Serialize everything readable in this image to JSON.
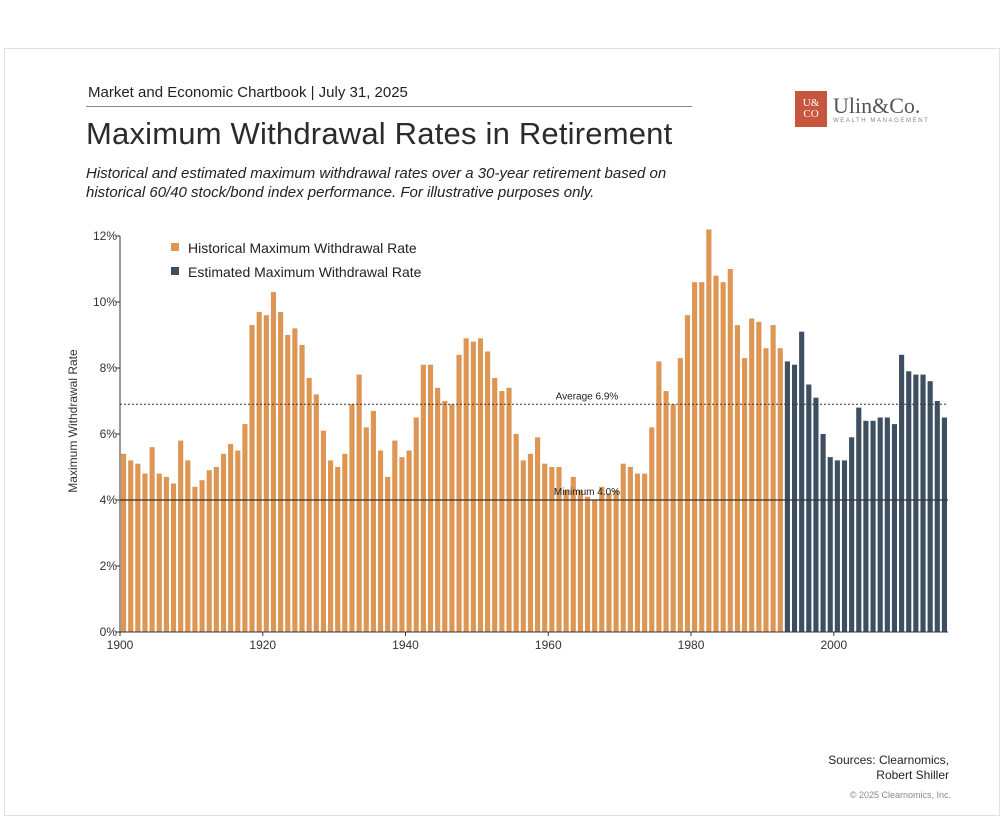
{
  "header": {
    "chartbook_line": "Market and Economic Chartbook | July 31, 2025",
    "title": "Maximum Withdrawal Rates in Retirement",
    "subtitle": "Historical and estimated maximum withdrawal rates over a 30-year retirement based on historical 60/40 stock/bond index performance. For illustrative purposes only."
  },
  "logo": {
    "mark_top": "U&",
    "mark_bottom": "CO",
    "name": "Ulin&Co.",
    "tagline": "WEALTH MANAGEMENT"
  },
  "footer": {
    "sources_line1": "Sources: Clearnomics,",
    "sources_line2": "Robert Shiller",
    "copyright": "© 2025 Clearnomics, Inc."
  },
  "colors": {
    "historical": "#dd9654",
    "estimated": "#3d4f61",
    "axis": "#333333"
  },
  "chart_data": {
    "type": "bar",
    "ylabel": "Maximum Withdrawal Rate",
    "xlabel": "",
    "ylim": [
      0,
      12
    ],
    "yticks": [
      "0%",
      "2%",
      "4%",
      "6%",
      "8%",
      "10%",
      "12%"
    ],
    "xlim": [
      1900,
      2016
    ],
    "xticks": [
      "1900",
      "1920",
      "1940",
      "1960",
      "1980",
      "2000"
    ],
    "grid": false,
    "legend_position": "top-left",
    "reference_lines": [
      {
        "label": "Average 6.9%",
        "value": 6.9,
        "style": "dotted"
      },
      {
        "label": "Minimum 4.0%",
        "value": 4.0,
        "style": "solid"
      }
    ],
    "series": [
      {
        "name": "Historical Maximum Withdrawal Rate",
        "start_year": 1900,
        "values": [
          5.4,
          5.2,
          5.1,
          4.8,
          5.6,
          4.8,
          4.7,
          4.5,
          5.8,
          5.2,
          4.4,
          4.6,
          4.9,
          5.0,
          5.4,
          5.7,
          5.5,
          6.3,
          9.3,
          9.7,
          9.6,
          10.3,
          9.7,
          9.0,
          9.2,
          8.7,
          7.7,
          7.2,
          6.1,
          5.2,
          5.0,
          5.4,
          6.9,
          7.8,
          6.2,
          6.7,
          5.5,
          4.7,
          5.8,
          5.3,
          5.5,
          6.5,
          8.1,
          8.1,
          7.4,
          7.0,
          6.9,
          8.4,
          8.9,
          8.8,
          8.9,
          8.5,
          7.7,
          7.3,
          7.4,
          6.0,
          5.2,
          5.4,
          5.9,
          5.1,
          5.0,
          5.0,
          4.3,
          4.7,
          4.3,
          4.1,
          4.0,
          4.4,
          4.2,
          4.3,
          5.1,
          5.0,
          4.8,
          4.8,
          6.2,
          8.2,
          7.3,
          6.9,
          8.3,
          9.6,
          10.6,
          10.6,
          12.2,
          10.8,
          10.6,
          11.0,
          9.3,
          8.3,
          9.5,
          9.4,
          8.6,
          9.3,
          8.6
        ]
      },
      {
        "name": "Estimated Maximum Withdrawal Rate",
        "start_year": 1993,
        "values": [
          8.2,
          8.1,
          9.1,
          7.5,
          7.1,
          6.0,
          5.3,
          5.2,
          5.2,
          5.9,
          6.8,
          6.4,
          6.4,
          6.5,
          6.5,
          6.3,
          8.4,
          7.9,
          7.8,
          7.8,
          7.6,
          7.0,
          6.5
        ]
      }
    ]
  }
}
